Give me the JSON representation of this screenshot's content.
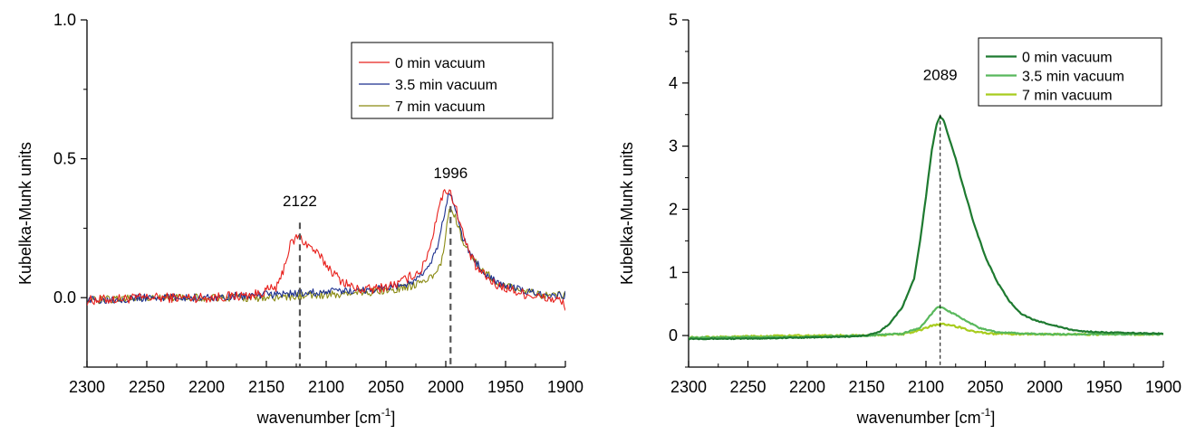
{
  "chart_data": [
    {
      "type": "line",
      "xlabel": "wavenumber [cm",
      "xlabel_sup": "-1",
      "xlabel_end": "]",
      "ylabel": "Kubelka-Munk units",
      "xlim": [
        2300,
        1900
      ],
      "ylim": [
        -0.25,
        1.0
      ],
      "xticks": [
        2300,
        2250,
        2200,
        2150,
        2100,
        2050,
        2000,
        1950,
        1900
      ],
      "xtick_labels": [
        "2300",
        "2250",
        "2200",
        "2150",
        "2100",
        "2050",
        "2000",
        "1950",
        "1900"
      ],
      "yticks": [
        1.0,
        0.5,
        0.0
      ],
      "ytick_labels": [
        "1.0",
        "0.5",
        "0.0"
      ],
      "legend": "top-right",
      "series": [
        {
          "name": "0 min vacuum",
          "color": "#e8201c",
          "noise": 0.018,
          "points": [
            [
              2300,
              -0.01
            ],
            [
              2250,
              0.0
            ],
            [
              2200,
              0.0
            ],
            [
              2160,
              0.01
            ],
            [
              2140,
              0.04
            ],
            [
              2130,
              0.19
            ],
            [
              2124,
              0.22
            ],
            [
              2118,
              0.2
            ],
            [
              2110,
              0.17
            ],
            [
              2100,
              0.12
            ],
            [
              2090,
              0.07
            ],
            [
              2075,
              0.03
            ],
            [
              2060,
              0.03
            ],
            [
              2040,
              0.05
            ],
            [
              2020,
              0.1
            ],
            [
              2012,
              0.2
            ],
            [
              2006,
              0.33
            ],
            [
              2000,
              0.39
            ],
            [
              1996,
              0.38
            ],
            [
              1990,
              0.3
            ],
            [
              1983,
              0.19
            ],
            [
              1975,
              0.11
            ],
            [
              1960,
              0.05
            ],
            [
              1940,
              0.02
            ],
            [
              1920,
              0.0
            ],
            [
              1905,
              -0.01
            ],
            [
              1900,
              -0.03
            ]
          ]
        },
        {
          "name": "3.5 min vacuum",
          "color": "#1b2f8e",
          "noise": 0.014,
          "points": [
            [
              2300,
              -0.01
            ],
            [
              2250,
              0.0
            ],
            [
              2200,
              0.0
            ],
            [
              2150,
              0.01
            ],
            [
              2100,
              0.02
            ],
            [
              2060,
              0.03
            ],
            [
              2030,
              0.05
            ],
            [
              2015,
              0.1
            ],
            [
              2007,
              0.18
            ],
            [
              2001,
              0.3
            ],
            [
              1997,
              0.38
            ],
            [
              1993,
              0.34
            ],
            [
              1987,
              0.23
            ],
            [
              1980,
              0.16
            ],
            [
              1970,
              0.1
            ],
            [
              1955,
              0.05
            ],
            [
              1940,
              0.03
            ],
            [
              1920,
              0.01
            ],
            [
              1900,
              0.01
            ]
          ]
        },
        {
          "name": "7 min vacuum",
          "color": "#8a8a12",
          "noise": 0.014,
          "points": [
            [
              2300,
              -0.01
            ],
            [
              2250,
              0.0
            ],
            [
              2200,
              0.0
            ],
            [
              2150,
              0.0
            ],
            [
              2100,
              0.01
            ],
            [
              2060,
              0.02
            ],
            [
              2030,
              0.04
            ],
            [
              2012,
              0.07
            ],
            [
              2004,
              0.12
            ],
            [
              1999,
              0.26
            ],
            [
              1996,
              0.33
            ],
            [
              1993,
              0.3
            ],
            [
              1987,
              0.22
            ],
            [
              1980,
              0.15
            ],
            [
              1970,
              0.1
            ],
            [
              1955,
              0.05
            ],
            [
              1940,
              0.03
            ],
            [
              1920,
              0.01
            ],
            [
              1900,
              0.01
            ]
          ]
        }
      ],
      "annotations": [
        {
          "label": "2122",
          "x": 2122,
          "y_top": 0.27
        },
        {
          "label": "1996",
          "x": 1996,
          "y_top": 0.33
        }
      ],
      "annotation_label_y": [
        0.33,
        0.43
      ]
    },
    {
      "type": "line",
      "xlabel": "wavenumber [cm",
      "xlabel_sup": "-1",
      "xlabel_end": "]",
      "ylabel": "Kubelka-Munk units",
      "xlim": [
        2300,
        1900
      ],
      "ylim": [
        -0.5,
        5.0
      ],
      "xticks": [
        2300,
        2250,
        2200,
        2150,
        2100,
        2050,
        2000,
        1950,
        1900
      ],
      "xtick_labels": [
        "2300",
        "2250",
        "2200",
        "2150",
        "2100",
        "2050",
        "2000",
        "1950",
        "1900"
      ],
      "yticks": [
        5,
        4,
        3,
        2,
        1,
        0
      ],
      "ytick_labels": [
        "5",
        "4",
        "3",
        "2",
        "1",
        "0"
      ],
      "legend": "top-right",
      "series": [
        {
          "name": "0 min vacuum",
          "color": "#1e7a30",
          "noise": 0.008,
          "points": [
            [
              2300,
              -0.05
            ],
            [
              2250,
              -0.05
            ],
            [
              2200,
              -0.03
            ],
            [
              2170,
              -0.02
            ],
            [
              2150,
              0.0
            ],
            [
              2140,
              0.05
            ],
            [
              2130,
              0.2
            ],
            [
              2120,
              0.45
            ],
            [
              2110,
              0.9
            ],
            [
              2105,
              1.5
            ],
            [
              2100,
              2.2
            ],
            [
              2095,
              2.95
            ],
            [
              2091,
              3.35
            ],
            [
              2088,
              3.47
            ],
            [
              2085,
              3.4
            ],
            [
              2080,
              3.1
            ],
            [
              2075,
              2.8
            ],
            [
              2070,
              2.45
            ],
            [
              2060,
              1.8
            ],
            [
              2050,
              1.25
            ],
            [
              2040,
              0.85
            ],
            [
              2030,
              0.55
            ],
            [
              2020,
              0.35
            ],
            [
              2010,
              0.25
            ],
            [
              2000,
              0.2
            ],
            [
              1990,
              0.15
            ],
            [
              1980,
              0.1
            ],
            [
              1970,
              0.07
            ],
            [
              1950,
              0.05
            ],
            [
              1930,
              0.04
            ],
            [
              1900,
              0.03
            ]
          ]
        },
        {
          "name": "3.5 min vacuum",
          "color": "#58b85c",
          "noise": 0.01,
          "points": [
            [
              2300,
              -0.03
            ],
            [
              2200,
              -0.02
            ],
            [
              2150,
              0.0
            ],
            [
              2120,
              0.03
            ],
            [
              2105,
              0.12
            ],
            [
              2095,
              0.35
            ],
            [
              2090,
              0.45
            ],
            [
              2085,
              0.43
            ],
            [
              2078,
              0.36
            ],
            [
              2068,
              0.25
            ],
            [
              2055,
              0.12
            ],
            [
              2040,
              0.05
            ],
            [
              2000,
              0.02
            ],
            [
              1900,
              0.02
            ]
          ]
        },
        {
          "name": "7 min vacuum",
          "color": "#a8cc1e",
          "noise": 0.014,
          "points": [
            [
              2300,
              -0.03
            ],
            [
              2200,
              0.0
            ],
            [
              2150,
              0.0
            ],
            [
              2120,
              0.02
            ],
            [
              2105,
              0.08
            ],
            [
              2095,
              0.16
            ],
            [
              2088,
              0.18
            ],
            [
              2080,
              0.17
            ],
            [
              2070,
              0.12
            ],
            [
              2060,
              0.06
            ],
            [
              2045,
              0.03
            ],
            [
              2000,
              0.02
            ],
            [
              1900,
              0.02
            ]
          ]
        }
      ],
      "annotations": [
        {
          "label": "2089",
          "x": 2088,
          "y_top": 3.5
        }
      ],
      "annotation_label_y": [
        4.05
      ]
    }
  ]
}
